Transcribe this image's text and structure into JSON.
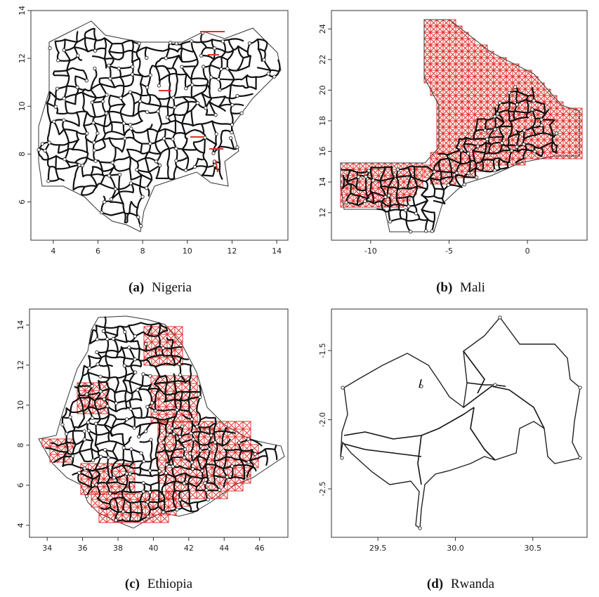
{
  "panels": [
    {
      "id": "a",
      "caption_label": "(a)",
      "caption_text": "Nigeria",
      "chart_data": {
        "type": "network-map",
        "xlim": [
          3,
          14.5
        ],
        "ylim": [
          4.4,
          14
        ],
        "xticks": [
          "4",
          "6",
          "8",
          "10",
          "12",
          "14"
        ],
        "yticks": [
          "6",
          "8",
          "10",
          "12",
          "14"
        ],
        "colors": {
          "roads": "#111111",
          "added_links": "#e0302a"
        }
      }
    },
    {
      "id": "b",
      "caption_label": "(b)",
      "caption_text": "Mali",
      "chart_data": {
        "type": "network-map",
        "xlim": [
          -12.5,
          3.8
        ],
        "ylim": [
          10.2,
          25.2
        ],
        "xticks": [
          "-10",
          "-5",
          "0"
        ],
        "yticks": [
          "12",
          "14",
          "16",
          "18",
          "20",
          "22",
          "24"
        ],
        "colors": {
          "roads": "#111111",
          "added_links": "#e0302a"
        }
      }
    },
    {
      "id": "c",
      "caption_label": "(c)",
      "caption_text": "Ethiopia",
      "chart_data": {
        "type": "network-map",
        "xlim": [
          33,
          47.6
        ],
        "ylim": [
          3.4,
          14.8
        ],
        "xticks": [
          "34",
          "36",
          "38",
          "40",
          "42",
          "44",
          "46"
        ],
        "yticks": [
          "4",
          "6",
          "8",
          "10",
          "12",
          "14"
        ],
        "colors": {
          "roads": "#111111",
          "added_links": "#e0302a"
        }
      }
    },
    {
      "id": "d",
      "caption_label": "(d)",
      "caption_text": "Rwanda",
      "chart_data": {
        "type": "network-map",
        "xlim": [
          29.2,
          30.85
        ],
        "ylim": [
          -2.85,
          -1.2
        ],
        "xticks": [
          "29.5",
          "30.0",
          "30.5"
        ],
        "yticks": [
          "-1.5",
          "-2.0",
          "-2.5"
        ],
        "colors": {
          "roads": "#111111",
          "added_links": "#e0302a"
        }
      }
    }
  ]
}
